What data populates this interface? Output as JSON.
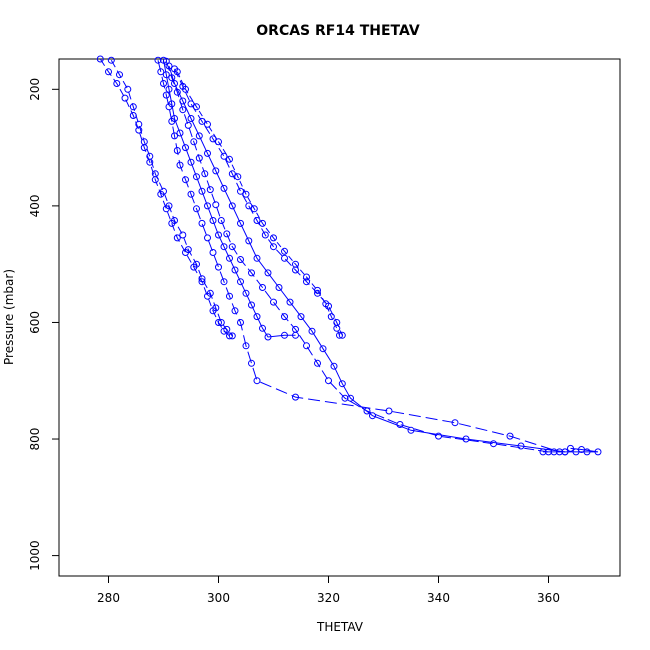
{
  "chart_data": {
    "type": "scatter",
    "title": "ORCAS RF14 THETAV",
    "xlabel": "THETAV",
    "ylabel": "Pressure (mbar)",
    "xlim": [
      271,
      373
    ],
    "ylim": [
      1035,
      148
    ],
    "y_reversed": true,
    "xticks": [
      280,
      300,
      320,
      340,
      360
    ],
    "yticks": [
      200,
      400,
      600,
      800,
      1000
    ],
    "grid": false,
    "legend": "none",
    "color": "#0000ff",
    "marker": "open-circle",
    "line_style": "dashed-and-solid",
    "series": [
      {
        "points": [
          [
            278.5,
            148
          ],
          [
            280,
            170
          ],
          [
            281.5,
            190
          ],
          [
            283,
            215
          ],
          [
            284.5,
            245
          ],
          [
            285.5,
            270
          ],
          [
            286.5,
            300
          ],
          [
            287.5,
            325
          ],
          [
            288.5,
            355
          ],
          [
            289.5,
            380
          ],
          [
            290.5,
            405
          ],
          [
            291.5,
            430
          ],
          [
            292.5,
            455
          ],
          [
            294,
            480
          ],
          [
            295.5,
            505
          ],
          [
            297,
            530
          ],
          [
            298,
            555
          ],
          [
            299,
            580
          ],
          [
            300,
            600
          ],
          [
            301,
            615
          ],
          [
            302,
            623
          ]
        ]
      },
      {
        "points": [
          [
            280.5,
            150
          ],
          [
            282,
            175
          ],
          [
            283.5,
            200
          ],
          [
            284.5,
            230
          ],
          [
            285.5,
            260
          ],
          [
            286.5,
            290
          ],
          [
            287.5,
            315
          ],
          [
            288.5,
            345
          ],
          [
            290,
            375
          ],
          [
            291,
            400
          ],
          [
            292,
            425
          ],
          [
            293.5,
            450
          ],
          [
            294.5,
            475
          ],
          [
            296,
            500
          ],
          [
            297,
            525
          ],
          [
            298.5,
            550
          ],
          [
            299.5,
            575
          ],
          [
            300.5,
            600
          ],
          [
            301.5,
            612
          ],
          [
            302.5,
            623
          ]
        ]
      },
      {
        "points": [
          [
            289,
            150
          ],
          [
            289.5,
            170
          ],
          [
            290,
            190
          ],
          [
            290.5,
            210
          ],
          [
            291,
            230
          ],
          [
            291.5,
            255
          ],
          [
            292,
            280
          ],
          [
            292.5,
            305
          ],
          [
            293,
            330
          ],
          [
            294,
            355
          ],
          [
            295,
            380
          ],
          [
            296,
            405
          ],
          [
            297,
            430
          ],
          [
            298,
            455
          ],
          [
            299,
            480
          ],
          [
            300,
            505
          ],
          [
            301,
            530
          ],
          [
            302,
            555
          ],
          [
            303,
            580
          ],
          [
            304,
            600
          ],
          [
            305,
            640
          ],
          [
            306,
            670
          ],
          [
            307,
            700
          ],
          [
            314,
            728
          ],
          [
            331,
            752
          ],
          [
            343,
            772
          ],
          [
            353,
            795
          ],
          [
            362,
            822
          ]
        ]
      },
      {
        "points": [
          [
            290,
            150
          ],
          [
            290.5,
            175
          ],
          [
            291,
            200
          ],
          [
            291.5,
            225
          ],
          [
            292,
            250
          ],
          [
            293,
            275
          ],
          [
            294,
            300
          ],
          [
            295,
            325
          ],
          [
            296,
            350
          ],
          [
            297,
            375
          ],
          [
            298,
            400
          ],
          [
            299,
            425
          ],
          [
            300,
            450
          ],
          [
            301,
            470
          ],
          [
            302,
            490
          ],
          [
            303,
            510
          ],
          [
            304,
            530
          ],
          [
            305,
            550
          ],
          [
            306,
            570
          ],
          [
            307,
            590
          ],
          [
            308,
            610
          ],
          [
            309,
            625
          ],
          [
            312,
            622
          ],
          [
            314,
            622
          ]
        ]
      },
      {
        "points": [
          [
            290.5,
            152
          ],
          [
            291.5,
            180
          ],
          [
            292.5,
            205
          ],
          [
            293.5,
            235
          ],
          [
            294.5,
            262
          ],
          [
            295.5,
            290
          ],
          [
            296.5,
            318
          ],
          [
            297.5,
            345
          ],
          [
            298.5,
            372
          ],
          [
            299.5,
            398
          ],
          [
            300.5,
            425
          ],
          [
            301.5,
            448
          ],
          [
            302.5,
            470
          ],
          [
            304,
            492
          ],
          [
            306,
            515
          ],
          [
            308,
            540
          ],
          [
            310,
            565
          ],
          [
            312,
            590
          ],
          [
            314,
            612
          ],
          [
            316,
            640
          ],
          [
            318,
            670
          ],
          [
            320,
            700
          ],
          [
            323,
            730
          ],
          [
            327,
            752
          ],
          [
            333,
            775
          ],
          [
            340,
            795
          ],
          [
            350,
            808
          ],
          [
            360,
            822
          ]
        ]
      },
      {
        "points": [
          [
            291,
            160
          ],
          [
            292,
            190
          ],
          [
            293.5,
            220
          ],
          [
            295,
            250
          ],
          [
            296.5,
            280
          ],
          [
            298,
            310
          ],
          [
            299.5,
            340
          ],
          [
            301,
            370
          ],
          [
            302.5,
            400
          ],
          [
            304,
            430
          ],
          [
            305.5,
            460
          ],
          [
            307,
            490
          ],
          [
            309,
            515
          ],
          [
            311,
            540
          ],
          [
            313,
            565
          ],
          [
            315,
            590
          ],
          [
            317,
            615
          ],
          [
            319,
            645
          ],
          [
            321,
            675
          ],
          [
            322.5,
            705
          ],
          [
            324,
            730
          ],
          [
            328,
            760
          ],
          [
            335,
            785
          ],
          [
            345,
            800
          ],
          [
            355,
            812
          ],
          [
            363,
            822
          ]
        ]
      },
      {
        "points": [
          [
            292,
            165
          ],
          [
            293.5,
            195
          ],
          [
            295,
            225
          ],
          [
            297,
            255
          ],
          [
            299,
            285
          ],
          [
            301,
            315
          ],
          [
            302.5,
            345
          ],
          [
            304,
            375
          ],
          [
            305.5,
            400
          ],
          [
            307,
            425
          ],
          [
            308.5,
            450
          ],
          [
            310,
            470
          ],
          [
            312,
            490
          ],
          [
            314,
            510
          ],
          [
            316,
            530
          ],
          [
            318,
            550
          ],
          [
            320,
            572
          ],
          [
            321.5,
            600
          ],
          [
            322.5,
            622
          ]
        ]
      },
      {
        "points": [
          [
            292.5,
            170
          ],
          [
            294,
            200
          ],
          [
            296,
            230
          ],
          [
            298,
            260
          ],
          [
            300,
            290
          ],
          [
            302,
            320
          ],
          [
            303.5,
            350
          ],
          [
            305,
            380
          ],
          [
            306.5,
            405
          ],
          [
            308,
            430
          ],
          [
            310,
            455
          ],
          [
            312,
            478
          ],
          [
            314,
            500
          ],
          [
            316,
            522
          ],
          [
            318,
            545
          ],
          [
            319.5,
            568
          ],
          [
            320.5,
            590
          ],
          [
            321.5,
            610
          ],
          [
            322,
            622
          ]
        ]
      },
      {
        "points": [
          [
            359,
            822
          ],
          [
            361,
            822
          ],
          [
            363,
            822
          ],
          [
            365,
            822
          ],
          [
            367,
            822
          ],
          [
            369,
            822
          ],
          [
            366,
            818
          ],
          [
            364,
            816
          ]
        ]
      }
    ]
  }
}
